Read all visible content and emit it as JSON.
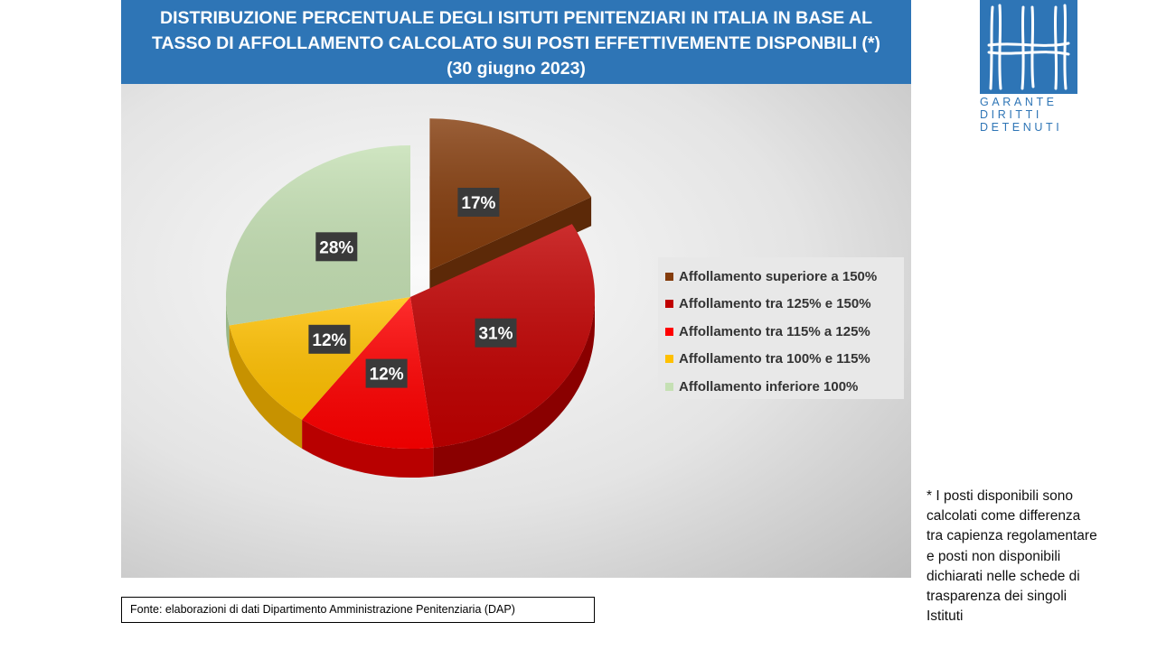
{
  "title_lines": [
    "DISTRIBUZIONE PERCENTUALE DEGLI ISITUTI PENITENZIARI IN ITALIA IN BASE AL",
    "TASSO DI AFFOLLAMENTO CALCOLATO SUI POSTI EFFETTIVEMENTE DISPONBILI (*)",
    "(30 giugno 2023)"
  ],
  "logo": {
    "text_lines": [
      "GARANTE",
      "DIRITTI",
      "DETENUTI"
    ],
    "color": "#2e75b6"
  },
  "chart_data": {
    "type": "pie",
    "style": "3d-exploded",
    "legend_position": "right",
    "series": [
      {
        "name": "Affollamento superiore  a 150%",
        "value": 17,
        "label": "17%",
        "color": "#843c0c",
        "side_color": "#5c2908",
        "exploded": true
      },
      {
        "name": "Affollamento tra 125% e 150%",
        "value": 31,
        "label": "31%",
        "color": "#c00000",
        "side_color": "#8a0000",
        "exploded": false
      },
      {
        "name": "Affollamento tra 115% a 125%",
        "value": 12,
        "label": "12%",
        "color": "#ff0000",
        "side_color": "#b80000",
        "exploded": false
      },
      {
        "name": "Affollamento tra 100% e 115%",
        "value": 12,
        "label": "12%",
        "color": "#ffc000",
        "side_color": "#c79200",
        "exploded": false
      },
      {
        "name": "Affollamento inferiore  100%",
        "value": 28,
        "label": "28%",
        "color": "#c5e0b4",
        "side_color": "#98b788",
        "exploded": false
      }
    ]
  },
  "note_lines": [
    "* I posti disponibili sono",
    "calcolati come differenza",
    "tra capienza regolamentare",
    "e posti non disponibili",
    "dichiarati nelle schede di",
    "trasparenza dei singoli",
    "Istituti"
  ],
  "source": "Fonte: elaborazioni di dati Dipartimento  Amministrazione Penitenziaria (DAP)"
}
